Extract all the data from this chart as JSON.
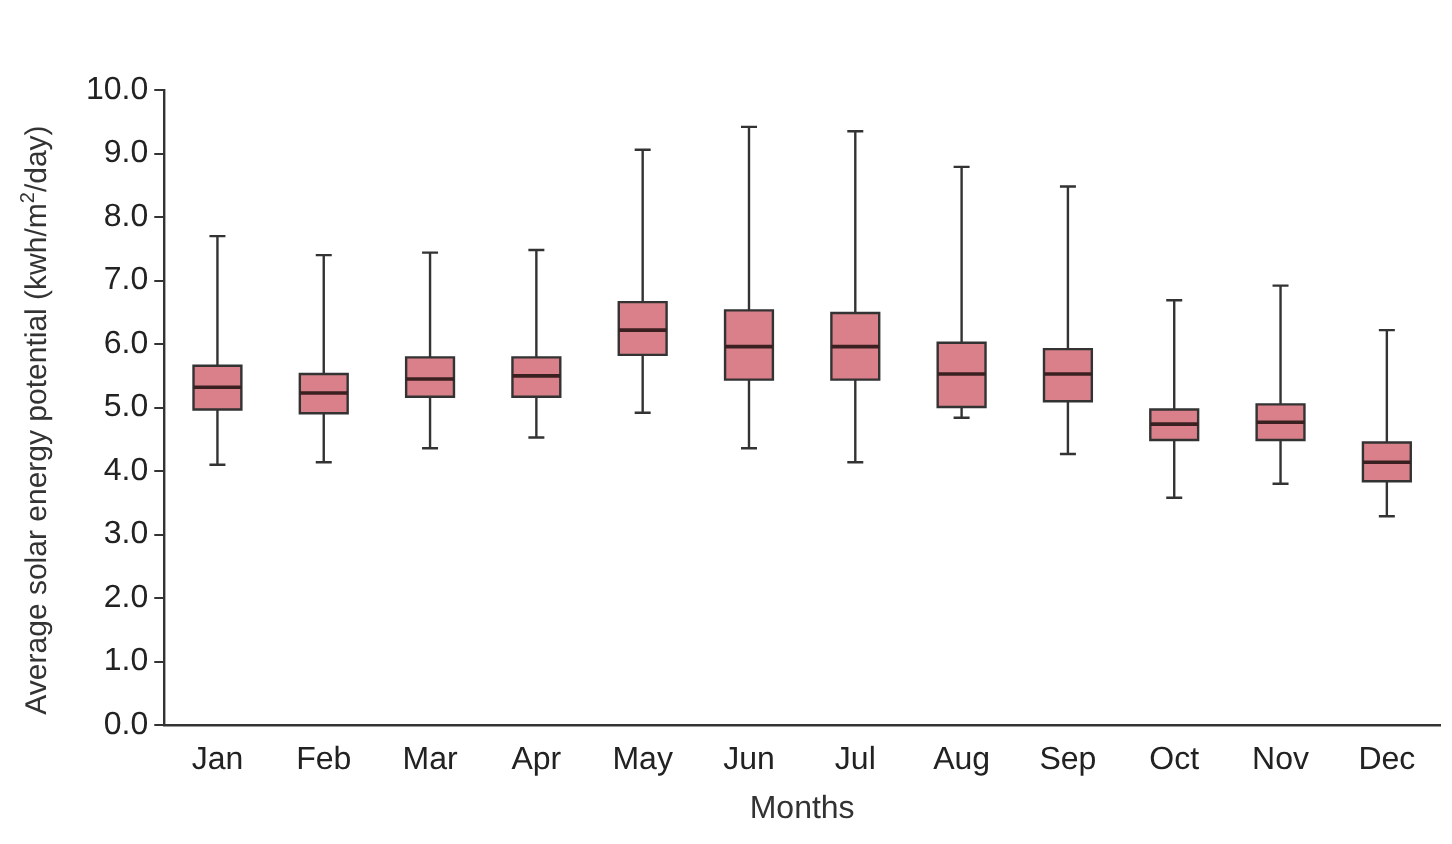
{
  "chart_data": {
    "type": "box",
    "xlabel": "Months",
    "ylabel": "Average solar energy potential (kwh/m$^{2}$/day)",
    "categories": [
      "Jan",
      "Feb",
      "Mar",
      "Apr",
      "May",
      "Jun",
      "Jul",
      "Aug",
      "Sep",
      "Oct",
      "Nov",
      "Dec"
    ],
    "color": "#d9808a",
    "boxes": [
      {
        "low": 4.1,
        "q1": 4.97,
        "median": 5.32,
        "q3": 5.66,
        "high": 7.7
      },
      {
        "low": 4.14,
        "q1": 4.91,
        "median": 5.23,
        "q3": 5.53,
        "high": 7.4
      },
      {
        "low": 4.36,
        "q1": 5.17,
        "median": 5.45,
        "q3": 5.79,
        "high": 7.44
      },
      {
        "low": 4.53,
        "q1": 5.17,
        "median": 5.5,
        "q3": 5.79,
        "high": 7.48
      },
      {
        "low": 4.92,
        "q1": 5.83,
        "median": 6.22,
        "q3": 6.66,
        "high": 9.06
      },
      {
        "low": 4.36,
        "q1": 5.44,
        "median": 5.96,
        "q3": 6.53,
        "high": 9.42
      },
      {
        "low": 4.14,
        "q1": 5.44,
        "median": 5.96,
        "q3": 6.49,
        "high": 9.35
      },
      {
        "low": 4.84,
        "q1": 5.01,
        "median": 5.53,
        "q3": 6.02,
        "high": 8.79
      },
      {
        "low": 4.27,
        "q1": 5.1,
        "median": 5.53,
        "q3": 5.92,
        "high": 8.48
      },
      {
        "low": 3.58,
        "q1": 4.49,
        "median": 4.74,
        "q3": 4.97,
        "high": 6.69
      },
      {
        "low": 3.8,
        "q1": 4.49,
        "median": 4.77,
        "q3": 5.05,
        "high": 6.92
      },
      {
        "low": 3.29,
        "q1": 3.84,
        "median": 4.14,
        "q3": 4.45,
        "high": 6.22
      }
    ],
    "ylim": [
      0,
      10
    ],
    "yticks": [
      {
        "value": 0,
        "label": "0.0"
      },
      {
        "value": 1,
        "label": "1.0"
      },
      {
        "value": 2,
        "label": "2.0"
      },
      {
        "value": 3,
        "label": "3.0"
      },
      {
        "value": 4,
        "label": "4.0"
      },
      {
        "value": 5,
        "label": "5.0"
      },
      {
        "value": 6,
        "label": "6.0"
      },
      {
        "value": 7,
        "label": "7.0"
      },
      {
        "value": 8,
        "label": "8.0"
      },
      {
        "value": 9,
        "label": "9.0"
      },
      {
        "value": 10,
        "label": "10.0"
      }
    ],
    "grid": false,
    "legend": false
  }
}
